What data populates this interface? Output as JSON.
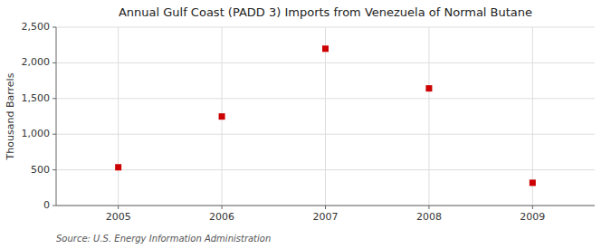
{
  "chart_data": {
    "type": "scatter",
    "title": "Annual Gulf Coast (PADD 3) Imports from Venezuela of Normal Butane",
    "ylabel": "Thousand Barrels",
    "annotation": "Source: U.S. Energy Information Administration",
    "x": [
      2005,
      2006,
      2007,
      2008,
      2009
    ],
    "values": [
      536,
      1248,
      2198,
      1642,
      319
    ],
    "color": "#cc0000",
    "marker": "square",
    "xlim": [
      2004.4,
      2009.6
    ],
    "ylim": [
      0,
      2500
    ],
    "xticks": [
      2005,
      2006,
      2007,
      2008,
      2009
    ],
    "yticks": [
      0,
      500,
      {
        "value": 1000,
        "label": "1,000"
      },
      {
        "value": 1500,
        "label": "1,500"
      },
      {
        "value": 2000,
        "label": "2,000"
      },
      {
        "value": 2500,
        "label": "2,500"
      }
    ],
    "grid": true
  }
}
